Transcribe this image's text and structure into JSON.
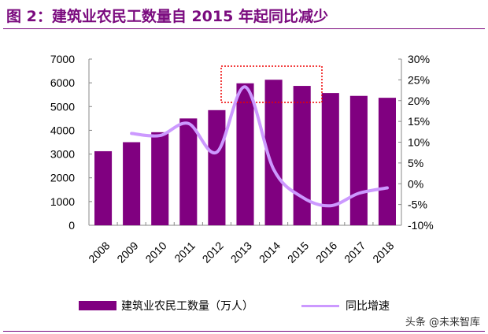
{
  "title": "图 2：建筑业农民工数量自 2015 年起同比减少",
  "watermark": "头条 @未来智库",
  "chart_data": {
    "type": "bar+line",
    "categories": [
      "2008",
      "2009",
      "2010",
      "2011",
      "2012",
      "2013",
      "2014",
      "2015",
      "2016",
      "2017",
      "2018"
    ],
    "series": [
      {
        "name": "建筑业农民工数量（万人）",
        "type": "bar",
        "axis": "left",
        "color": "#800080",
        "values": [
          3120,
          3500,
          3920,
          4500,
          4850,
          5980,
          6130,
          5870,
          5570,
          5450,
          5370
        ]
      },
      {
        "name": "同比增速",
        "type": "line",
        "axis": "right",
        "color": "#cc99ff",
        "values": [
          null,
          12.1,
          11.6,
          14.5,
          7.6,
          23.3,
          3.5,
          -3.2,
          -5.3,
          -2.3,
          -1.0
        ]
      }
    ],
    "ylim_left": [
      0,
      7000
    ],
    "yticks_left": [
      "0",
      "1000",
      "2000",
      "3000",
      "4000",
      "5000",
      "6000",
      "7000"
    ],
    "ylim_right": [
      -10,
      30
    ],
    "yticks_right": [
      "-10%",
      "-5%",
      "0%",
      "5%",
      "10%",
      "15%",
      "20%",
      "25%",
      "30%"
    ],
    "highlight_box_color": "#ee0000",
    "legend_position": "bottom",
    "grid": false
  }
}
